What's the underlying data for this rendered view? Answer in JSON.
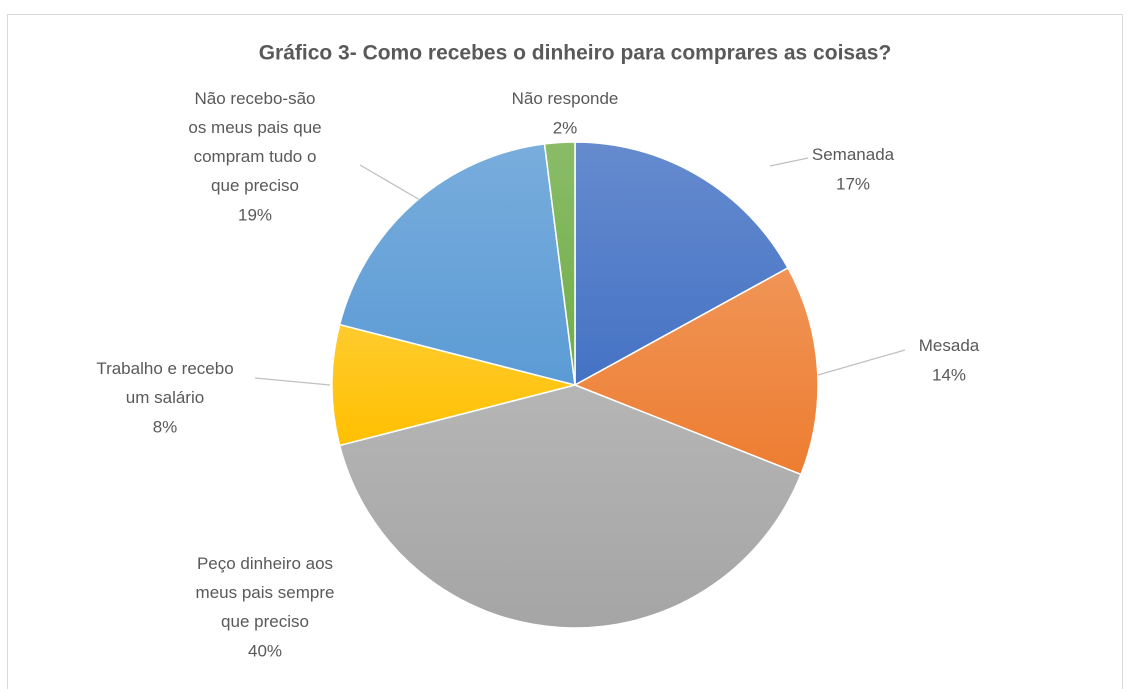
{
  "chart_data": {
    "type": "pie",
    "title": "Gráfico 3- Como recebes o dinheiro para comprares as coisas?",
    "categories": [
      "Semanada",
      "Mesada",
      "Peço dinheiro aos meus pais sempre que preciso",
      "Trabalho e recebo um salário",
      "Não recebo-são os meus pais que compram tudo o que preciso",
      "Não responde"
    ],
    "values": [
      17,
      14,
      40,
      8,
      19,
      2
    ],
    "value_labels": [
      "17%",
      "14%",
      "40%",
      "8%",
      "19%",
      "2%"
    ],
    "colors": [
      "#4472c4",
      "#ed7d31",
      "#a5a5a5",
      "#ffc000",
      "#5b9bd5",
      "#70ad47"
    ]
  }
}
